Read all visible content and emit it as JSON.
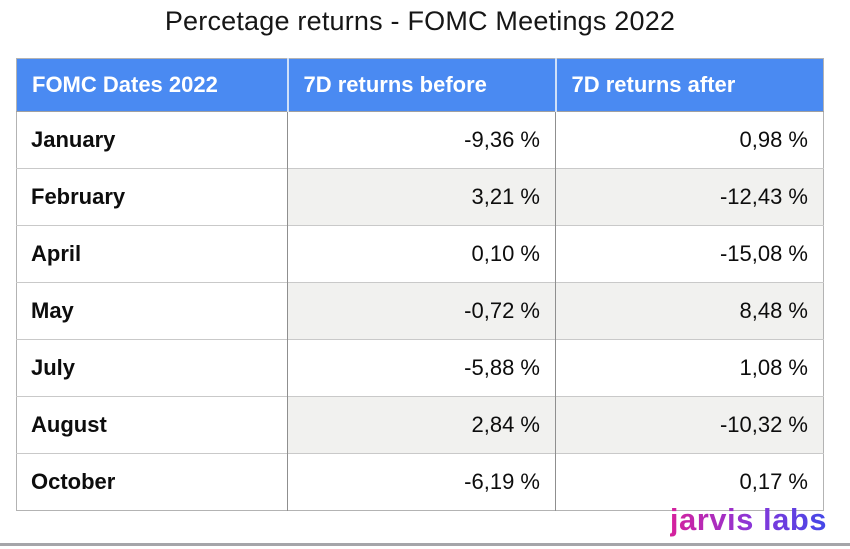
{
  "title": "Percetage returns - FOMC Meetings 2022",
  "table": {
    "columns": [
      "FOMC Dates 2022",
      "7D returns before",
      "7D returns after"
    ],
    "rows": [
      {
        "month": "January",
        "before": "-9,36 %",
        "after": "0,98 %"
      },
      {
        "month": "February",
        "before": "3,21 %",
        "after": "-12,43 %"
      },
      {
        "month": "April",
        "before": "0,10 %",
        "after": "-15,08 %"
      },
      {
        "month": "May",
        "before": "-0,72 %",
        "after": "8,48 %"
      },
      {
        "month": "July",
        "before": "-5,88 %",
        "after": "1,08 %"
      },
      {
        "month": "August",
        "before": "2,84 %",
        "after": "-10,32 %"
      },
      {
        "month": "October",
        "before": "-6,19 %",
        "after": "0,17 %"
      }
    ]
  },
  "branding": {
    "logo_text": "jarvis labs"
  },
  "colors": {
    "header_bg": "#4a8af2",
    "header_text": "#ffffff",
    "stripe_bg": "#f1f1ef",
    "border_light": "#c9c9c9",
    "border_dark": "#8f8f8f",
    "logo_gradient_start": "#d6219c",
    "logo_gradient_mid": "#8a36d8",
    "logo_gradient_end": "#4348e8"
  },
  "chart_data": {
    "type": "table",
    "title": "Percetage returns - FOMC Meetings 2022",
    "columns": [
      "FOMC Dates 2022",
      "7D returns before",
      "7D returns after"
    ],
    "categories": [
      "January",
      "February",
      "April",
      "May",
      "July",
      "August",
      "October"
    ],
    "series": [
      {
        "name": "7D returns before",
        "values": [
          -9.36,
          3.21,
          0.1,
          -0.72,
          -5.88,
          2.84,
          -6.19
        ]
      },
      {
        "name": "7D returns after",
        "values": [
          0.98,
          -12.43,
          -15.08,
          8.48,
          1.08,
          -10.32,
          0.17
        ]
      }
    ],
    "value_format": "comma-decimal with ' %' suffix",
    "layout": {
      "legend": "none",
      "grid": "cell borders",
      "striped_rows": [
        "February",
        "May",
        "August"
      ],
      "month_alignment": "left",
      "value_alignment": "right"
    }
  }
}
